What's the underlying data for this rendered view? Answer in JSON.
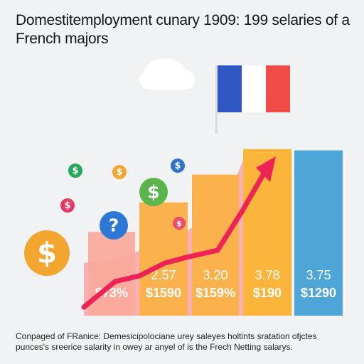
{
  "title": "Domestitemployment cunary 1909: 199 selaries of a French majors",
  "footer": {
    "line1": "Conpaged of FRanice: Demesicipolociane urey saleyes holtints sratation ofjctes",
    "line2": "punces's sreerice salarity in owey ar anyel of is the Frech Netting salarys."
  },
  "colors": {
    "background": "#f1f2f4",
    "bar_salmon": "#f9a99a",
    "bar_orange": "#fbb24d",
    "bar_yellow": "#fbb53a",
    "bar_blue": "#4ea6d8",
    "area_pink": "#f7a8ac",
    "arrow": "#ee2255",
    "flag_blue": "#2f56c3",
    "flag_red": "#f04b47",
    "cloud": "#ffffff"
  },
  "icons": [
    "cloud-icon",
    "france-flag-icon",
    "dollar-coin-icon",
    "question-icon",
    "trend-arrow-icon"
  ],
  "coins": [
    {
      "symbol": "$",
      "color": "#27a85b"
    },
    {
      "symbol": "$",
      "color": "#f2a630"
    },
    {
      "symbol": "$",
      "color": "#2f74c8"
    },
    {
      "symbol": "$",
      "color": "#e63a64"
    },
    {
      "symbol": "$",
      "color": "#5ab54a"
    },
    {
      "symbol": "$",
      "color": "#ef4a6e"
    },
    {
      "symbol": "$",
      "color": "#f2a630"
    },
    {
      "symbol": "?",
      "color": "#2d78d6"
    }
  ],
  "chart_data": {
    "type": "bar",
    "title": "Domestitemployment cunary 1909: 199 selaries of a French majors",
    "categories": [
      "",
      "",
      "",
      "",
      ""
    ],
    "series": [
      {
        "values": [
          1.9,
          2.57,
          3.2,
          3.78,
          3.75
        ],
        "value_labels": [
          "",
          "2.57",
          "3.20",
          "3.78",
          "3.75"
        ],
        "amount_labels": [
          "$73%",
          "$1590",
          "$159%",
          "$190",
          "$1290"
        ],
        "colors": [
          "#f9a99a",
          "#fbb24d",
          "#fbb24d",
          "#fbb53a",
          "#4ea6d8"
        ]
      }
    ],
    "ylim": [
      0,
      6
    ],
    "xlabel": "",
    "ylabel": "",
    "grid": false,
    "legend": "none"
  }
}
